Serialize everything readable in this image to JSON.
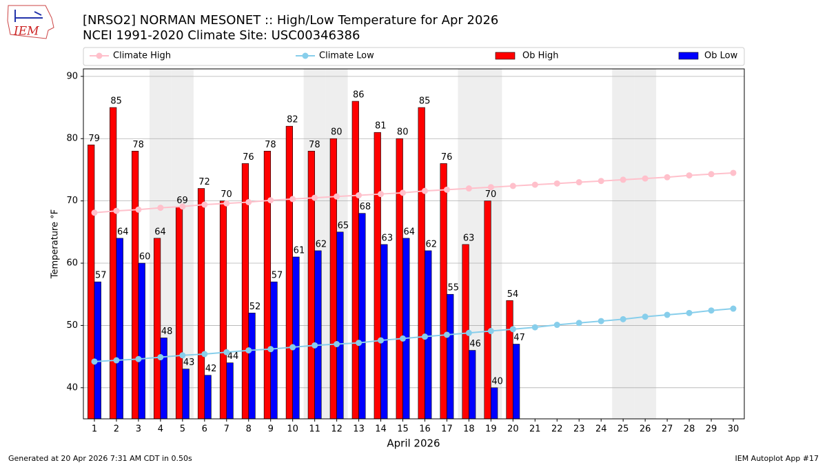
{
  "logo_text": "IEM",
  "footer_left": "Generated at 20 Apr 2026 7:31 AM CDT in 0.50s",
  "footer_right": "IEM Autoplot App #17",
  "chart_data": {
    "type": "bar",
    "title": "[NRSO2] NORMAN MESONET :: High/Low Temperature for Apr 2026",
    "subtitle": "NCEI 1991-2020 Climate Site: USC00346386",
    "xlabel": "April 2026",
    "ylabel": "Temperature °F",
    "x": [
      1,
      2,
      3,
      4,
      5,
      6,
      7,
      8,
      9,
      10,
      11,
      12,
      13,
      14,
      15,
      16,
      17,
      18,
      19,
      20,
      21,
      22,
      23,
      24,
      25,
      26,
      27,
      28,
      29,
      30
    ],
    "xticks": [
      1,
      2,
      3,
      4,
      5,
      6,
      7,
      8,
      9,
      10,
      11,
      12,
      13,
      14,
      15,
      16,
      17,
      18,
      19,
      20,
      21,
      22,
      23,
      24,
      25,
      26,
      27,
      28,
      29,
      30
    ],
    "xlim": [
      0.5,
      30.5
    ],
    "ylim": [
      35,
      91.2
    ],
    "yticks": [
      40,
      50,
      60,
      70,
      80,
      90
    ],
    "grid": true,
    "shaded_x": [
      4,
      5,
      11,
      12,
      18,
      19,
      25,
      26
    ],
    "series": [
      {
        "name": "Climate High",
        "type": "line",
        "color": "#ffc0cb",
        "values": [
          68.1,
          68.4,
          68.6,
          68.9,
          69.1,
          69.4,
          69.6,
          69.8,
          70.1,
          70.3,
          70.5,
          70.7,
          70.9,
          71.1,
          71.3,
          71.6,
          71.8,
          72.0,
          72.2,
          72.4,
          72.6,
          72.8,
          73.0,
          73.2,
          73.4,
          73.6,
          73.8,
          74.1,
          74.3,
          74.5
        ]
      },
      {
        "name": "Climate Low",
        "type": "line",
        "color": "#87ceeb",
        "values": [
          44.2,
          44.4,
          44.6,
          44.9,
          45.2,
          45.4,
          45.7,
          46.0,
          46.2,
          46.5,
          46.8,
          47.0,
          47.2,
          47.6,
          47.9,
          48.2,
          48.5,
          48.8,
          49.1,
          49.4,
          49.7,
          50.1,
          50.4,
          50.7,
          51.0,
          51.4,
          51.7,
          52.0,
          52.4,
          52.7
        ]
      },
      {
        "name": "Ob High",
        "type": "bar",
        "color": "#ff0000",
        "values": [
          79,
          85,
          78,
          64,
          69,
          72,
          70,
          76,
          78,
          82,
          78,
          80,
          86,
          81,
          80,
          85,
          76,
          63,
          70,
          54,
          null,
          null,
          null,
          null,
          null,
          null,
          null,
          null,
          null,
          null
        ]
      },
      {
        "name": "Ob Low",
        "type": "bar",
        "color": "#0000ff",
        "values": [
          57,
          64,
          60,
          48,
          43,
          42,
          44,
          52,
          57,
          61,
          62,
          65,
          68,
          63,
          64,
          62,
          55,
          46,
          40,
          47,
          null,
          null,
          null,
          null,
          null,
          null,
          null,
          null,
          null,
          null
        ]
      }
    ]
  }
}
